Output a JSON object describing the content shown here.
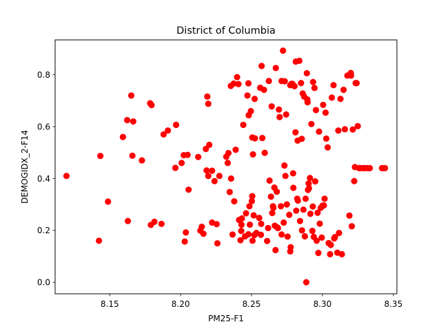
{
  "chart_data": {
    "type": "scatter",
    "title": "District of Columbia",
    "xlabel": "PM25-F1",
    "ylabel": "DEMOGIDX_2-F14",
    "xlim": [
      8.1115,
      8.3525
    ],
    "ylim": [
      -0.0445,
      0.9345
    ],
    "xticks": [
      8.15,
      8.2,
      8.25,
      8.3,
      8.35
    ],
    "yticks": [
      0.0,
      0.2,
      0.4,
      0.6,
      0.8
    ],
    "xtick_labels": [
      "8.15",
      "8.20",
      "8.25",
      "8.30",
      "8.35"
    ],
    "ytick_labels": [
      "0.0",
      "0.2",
      "0.4",
      "0.6",
      "0.8"
    ],
    "marker_color": "#ff0000",
    "grid": false,
    "legend": null,
    "series": [
      {
        "name": "points",
        "x": [
          8.1195,
          8.1424,
          8.1434,
          8.1488,
          8.1593,
          8.1623,
          8.1628,
          8.1652,
          8.166,
          8.1666,
          8.1727,
          8.1785,
          8.179,
          8.1795,
          8.1815,
          8.1865,
          8.188,
          8.191,
          8.1963,
          8.1968,
          8.2007,
          8.2022,
          8.2029,
          8.2037,
          8.2049,
          8.2056,
          8.2124,
          8.2139,
          8.2149,
          8.2161,
          8.2178,
          8.2183,
          8.2188,
          8.2195,
          8.2195,
          8.2202,
          8.2222,
          8.2222,
          8.2239,
          8.2254,
          8.2259,
          8.2273,
          8.2322,
          8.2332,
          8.2337,
          8.2346,
          8.2354,
          8.2356,
          8.2366,
          8.2374,
          8.2378,
          8.2388,
          8.2398,
          8.2408,
          8.2412,
          8.2422,
          8.2427,
          8.2429,
          8.2432,
          8.2442,
          8.2454,
          8.2461,
          8.2471,
          8.2478,
          8.2478,
          8.248,
          8.2485,
          8.2488,
          8.2495,
          8.2502,
          8.2505,
          8.2505,
          8.2507,
          8.251,
          8.2515,
          8.252,
          8.2522,
          8.2524,
          8.2534,
          8.2554,
          8.2561,
          8.2566,
          8.2568,
          8.2571,
          8.2576,
          8.2588,
          8.2593,
          8.261,
          8.2617,
          8.2622,
          8.2627,
          8.2637,
          8.2642,
          8.2646,
          8.2651,
          8.2654,
          8.2661,
          8.2664,
          8.2669,
          8.2671,
          8.2678,
          8.2681,
          8.2686,
          8.2693,
          8.2698,
          8.2707,
          8.2712,
          8.2712,
          8.2722,
          8.2727,
          8.2732,
          8.2734,
          8.2739,
          8.2744,
          8.2749,
          8.2754,
          8.2766,
          8.2773,
          8.2773,
          8.2776,
          8.2781,
          8.2788,
          8.2793,
          8.2795,
          8.2803,
          8.281,
          8.2812,
          8.2815,
          8.2822,
          8.2825,
          8.2827,
          8.2837,
          8.2842,
          8.2849,
          8.2854,
          8.2856,
          8.2861,
          8.2866,
          8.2871,
          8.2876,
          8.2881,
          8.2886,
          8.289,
          8.2893,
          8.2895,
          8.2898,
          8.2903,
          8.2905,
          8.2912,
          8.2915,
          8.2922,
          8.2929,
          8.2932,
          8.2934,
          8.2939,
          8.2944,
          8.2949,
          8.2954,
          8.2959,
          8.2966,
          8.2971,
          8.2976,
          8.2981,
          8.2988,
          8.2995,
          8.3,
          8.3005,
          8.301,
          8.3015,
          8.3022,
          8.3027,
          8.3037,
          8.3044,
          8.3054,
          8.3059,
          8.3066,
          8.3078,
          8.3083,
          8.3088,
          8.3105,
          8.3112,
          8.3117,
          8.3127,
          8.3137,
          8.3149,
          8.3158,
          8.3176,
          8.319,
          8.32,
          8.3202,
          8.3207,
          8.3214,
          8.3224,
          8.3229,
          8.3234,
          8.3241,
          8.3249,
          8.3259,
          8.3261,
          8.3263,
          8.3268,
          8.3288,
          8.329,
          8.33,
          8.332,
          8.3334,
          8.342,
          8.3429,
          8.3441
        ],
        "y": [
          0.41,
          0.16,
          0.487,
          0.311,
          0.56,
          0.625,
          0.236,
          0.72,
          0.488,
          0.62,
          0.47,
          0.69,
          0.221,
          0.683,
          0.233,
          0.225,
          0.57,
          0.585,
          0.441,
          0.607,
          0.46,
          0.49,
          0.157,
          0.192,
          0.491,
          0.357,
          0.483,
          0.199,
          0.214,
          0.187,
          0.514,
          0.431,
          0.716,
          0.688,
          0.41,
          0.53,
          0.43,
          0.23,
          0.39,
          0.224,
          0.15,
          0.41,
          0.484,
          0.46,
          0.498,
          0.348,
          0.757,
          0.4,
          0.184,
          0.766,
          0.312,
          0.511,
          0.791,
          0.764,
          0.24,
          0.162,
          0.198,
          0.222,
          0.246,
          0.607,
          0.177,
          0.266,
          0.72,
          0.185,
          0.767,
          0.644,
          0.293,
          0.222,
          0.66,
          0.313,
          0.558,
          0.332,
          0.16,
          0.493,
          0.258,
          0.182,
          0.707,
          0.555,
          0.19,
          0.248,
          0.75,
          0.183,
          0.225,
          0.834,
          0.556,
          0.742,
          0.499,
          0.159,
          0.209,
          0.776,
          0.392,
          0.33,
          0.678,
          0.267,
          0.293,
          0.287,
          0.365,
          0.218,
          0.124,
          0.826,
          0.349,
          0.212,
          0.209,
          0.666,
          0.637,
          0.293,
          0.776,
          0.184,
          0.893,
          0.23,
          0.45,
          0.775,
          0.41,
          0.647,
          0.3,
          0.176,
          0.26,
          0.119,
          0.76,
          0.135,
          0.765,
          0.765,
          0.42,
          0.364,
          0.756,
          0.578,
          0.851,
          0.276,
          0.322,
          0.546,
          0.315,
          0.854,
          0.236,
          0.768,
          0.553,
          0.2,
          0.728,
          0.28,
          0.716,
          0.177,
          0.322,
          0.0,
          0.806,
          0.705,
          0.694,
          0.356,
          0.381,
          0.362,
          0.402,
          0.264,
          0.61,
          0.198,
          0.292,
          0.772,
          0.175,
          0.749,
          0.389,
          0.664,
          0.16,
          0.268,
          0.113,
          0.581,
          0.226,
          0.287,
          0.172,
          0.295,
          0.684,
          0.296,
          0.322,
          0.654,
          0.554,
          0.52,
          0.151,
          0.108,
          0.144,
          0.712,
          0.76,
          0.169,
          0.174,
          0.114,
          0.585,
          0.19,
          0.707,
          0.108,
          0.742,
          0.59,
          0.797,
          0.257,
          0.807,
          0.797,
          0.216,
          0.589,
          0.39,
          0.444,
          0.768,
          0.768,
          0.602,
          0.44,
          0.44,
          0.44,
          0.44,
          0.44,
          0.44,
          0.44,
          0.44,
          0.44,
          0.44,
          0.44,
          0.44
        ]
      }
    ]
  }
}
